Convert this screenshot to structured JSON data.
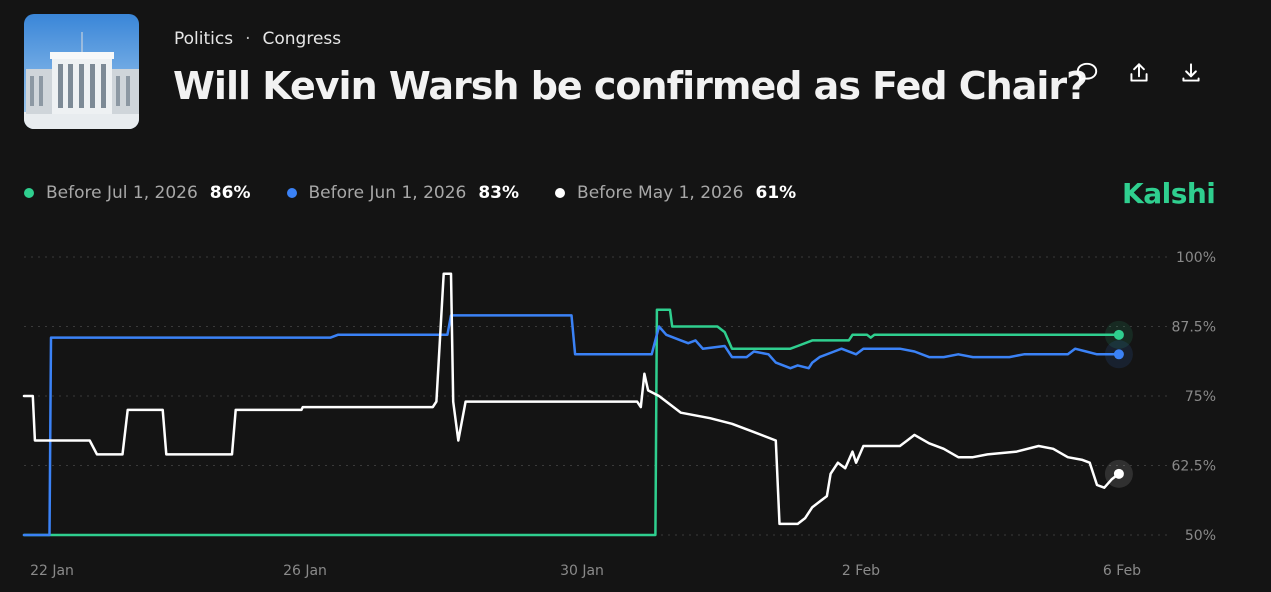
{
  "breadcrumb": {
    "category": "Politics",
    "separator": "·",
    "subcategory": "Congress"
  },
  "market": {
    "title": "Will Kevin Warsh be confirmed as Fed Chair?"
  },
  "brand": {
    "name": "Kalshi",
    "color": "#2fcf8f"
  },
  "actions": [
    "comment-icon",
    "share-icon",
    "download-icon"
  ],
  "chart_data": {
    "type": "line",
    "x_ticks": [
      "22 Jan",
      "26 Jan",
      "30 Jan",
      "2 Feb",
      "6 Feb"
    ],
    "y_ticks": [
      "100%",
      "87.5%",
      "75%",
      "62.5%",
      "50%"
    ],
    "ylim": [
      50,
      100
    ],
    "grid": true,
    "legend_position": "top-left",
    "series": [
      {
        "name": "Before Jul 1, 2026",
        "label": "86%",
        "color": "#2fcf8f",
        "points": [
          [
            22.0,
            50
          ],
          [
            30.65,
            50
          ],
          [
            30.67,
            90.5
          ],
          [
            30.85,
            90.5
          ],
          [
            30.88,
            87.5
          ],
          [
            31.5,
            87.5
          ],
          [
            31.6,
            86.5
          ],
          [
            31.7,
            83.5
          ],
          [
            32.5,
            83.5
          ],
          [
            32.6,
            84
          ],
          [
            32.8,
            85
          ],
          [
            33.3,
            85
          ],
          [
            33.35,
            86
          ],
          [
            33.55,
            86
          ],
          [
            33.6,
            85.5
          ],
          [
            33.65,
            86
          ],
          [
            35.0,
            86
          ],
          [
            36.0,
            86
          ],
          [
            36.9,
            86
          ],
          [
            37.0,
            86
          ]
        ]
      },
      {
        "name": "Before Jun 1, 2026",
        "label": "83%",
        "color": "#3b82f6",
        "points": [
          [
            22.0,
            50
          ],
          [
            22.35,
            50
          ],
          [
            22.37,
            85.5
          ],
          [
            26.2,
            85.5
          ],
          [
            26.3,
            86
          ],
          [
            27.8,
            86
          ],
          [
            27.85,
            89.5
          ],
          [
            29.5,
            89.5
          ],
          [
            29.55,
            82.5
          ],
          [
            30.6,
            82.5
          ],
          [
            30.7,
            87.5
          ],
          [
            30.8,
            86
          ],
          [
            31.0,
            85
          ],
          [
            31.1,
            84.5
          ],
          [
            31.2,
            85
          ],
          [
            31.3,
            83.5
          ],
          [
            31.6,
            84
          ],
          [
            31.7,
            82
          ],
          [
            31.9,
            82
          ],
          [
            32.0,
            83
          ],
          [
            32.2,
            82.5
          ],
          [
            32.3,
            81
          ],
          [
            32.5,
            80
          ],
          [
            32.6,
            80.5
          ],
          [
            32.75,
            80
          ],
          [
            32.8,
            81
          ],
          [
            32.9,
            82
          ],
          [
            33.1,
            83
          ],
          [
            33.2,
            83.5
          ],
          [
            33.4,
            82.5
          ],
          [
            33.5,
            83.5
          ],
          [
            34.0,
            83.5
          ],
          [
            34.2,
            83
          ],
          [
            34.4,
            82
          ],
          [
            34.6,
            82
          ],
          [
            34.8,
            82.5
          ],
          [
            35.0,
            82
          ],
          [
            35.5,
            82
          ],
          [
            35.7,
            82.5
          ],
          [
            36.0,
            82.5
          ],
          [
            36.3,
            82.5
          ],
          [
            36.4,
            83.5
          ],
          [
            36.55,
            83
          ],
          [
            36.7,
            82.5
          ],
          [
            36.9,
            82.5
          ],
          [
            37.0,
            82.5
          ]
        ]
      },
      {
        "name": "Before May 1, 2026",
        "label": "61%",
        "color": "#ffffff",
        "points": [
          [
            22.0,
            75
          ],
          [
            22.12,
            75
          ],
          [
            22.15,
            67
          ],
          [
            22.9,
            67
          ],
          [
            23.0,
            64.5
          ],
          [
            23.35,
            64.5
          ],
          [
            23.42,
            72.5
          ],
          [
            23.9,
            72.5
          ],
          [
            23.95,
            64.5
          ],
          [
            24.85,
            64.5
          ],
          [
            24.9,
            72.5
          ],
          [
            25.8,
            72.5
          ],
          [
            25.82,
            73
          ],
          [
            27.6,
            73
          ],
          [
            27.65,
            74
          ],
          [
            27.75,
            97
          ],
          [
            27.85,
            97
          ],
          [
            27.88,
            74
          ],
          [
            27.95,
            67
          ],
          [
            28.05,
            74
          ],
          [
            30.4,
            74
          ],
          [
            30.45,
            73
          ],
          [
            30.5,
            79
          ],
          [
            30.55,
            76
          ],
          [
            30.7,
            75
          ],
          [
            31.0,
            72
          ],
          [
            31.4,
            71
          ],
          [
            31.7,
            70
          ],
          [
            32.0,
            68.5
          ],
          [
            32.3,
            67
          ],
          [
            32.35,
            52
          ],
          [
            32.6,
            52
          ],
          [
            32.7,
            53
          ],
          [
            32.8,
            55
          ],
          [
            32.9,
            56
          ],
          [
            33.0,
            57
          ],
          [
            33.05,
            61
          ],
          [
            33.15,
            63
          ],
          [
            33.25,
            62
          ],
          [
            33.35,
            65
          ],
          [
            33.4,
            63
          ],
          [
            33.5,
            66
          ],
          [
            34.0,
            66
          ],
          [
            34.1,
            67
          ],
          [
            34.2,
            68
          ],
          [
            34.4,
            66.5
          ],
          [
            34.6,
            65.5
          ],
          [
            34.8,
            64
          ],
          [
            35.0,
            64
          ],
          [
            35.2,
            64.5
          ],
          [
            35.6,
            65
          ],
          [
            35.9,
            66
          ],
          [
            36.1,
            65.5
          ],
          [
            36.3,
            64
          ],
          [
            36.5,
            63.5
          ],
          [
            36.6,
            63
          ],
          [
            36.7,
            59
          ],
          [
            36.8,
            58.5
          ],
          [
            36.9,
            60
          ],
          [
            37.0,
            61
          ]
        ]
      }
    ]
  }
}
